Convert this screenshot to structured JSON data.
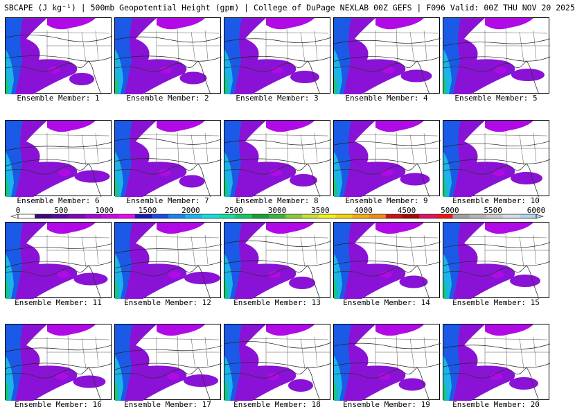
{
  "title": "SBCAPE (J kg⁻¹) | 500mb Geopotential Height (gpm) | College of DuPage NEXLAB 00Z GEFS | F096 Valid: 00Z THU NOV 20 2025",
  "panels": [
    {
      "label": "Ensemble Member: 1"
    },
    {
      "label": "Ensemble Member: 2"
    },
    {
      "label": "Ensemble Member: 3"
    },
    {
      "label": "Ensemble Member: 4"
    },
    {
      "label": "Ensemble Member: 5"
    },
    {
      "label": "Ensemble Member: 6"
    },
    {
      "label": "Ensemble Member: 7"
    },
    {
      "label": "Ensemble Member: 8"
    },
    {
      "label": "Ensemble Member: 9"
    },
    {
      "label": "Ensemble Member: 10"
    },
    {
      "label": "Ensemble Member: 11"
    },
    {
      "label": "Ensemble Member: 12"
    },
    {
      "label": "Ensemble Member: 13"
    },
    {
      "label": "Ensemble Member: 14"
    },
    {
      "label": "Ensemble Member: 15"
    },
    {
      "label": "Ensemble Member: 16"
    },
    {
      "label": "Ensemble Member: 17"
    },
    {
      "label": "Ensemble Member: 18"
    },
    {
      "label": "Ensemble Member: 19"
    },
    {
      "label": "Ensemble Member: 20"
    }
  ],
  "colorbar": {
    "ticks": [
      "0",
      "500",
      "1000",
      "1500",
      "2000",
      "2500",
      "3000",
      "3500",
      "4000",
      "4500",
      "5000",
      "5500",
      "6000"
    ],
    "colors": [
      "#ffffff",
      "#3c0a78",
      "#5a0a9a",
      "#7a0ab8",
      "#a00ad0",
      "#c80ae8",
      "#e60af0",
      "#1a1ab4",
      "#1a4ae0",
      "#1a82f0",
      "#1ab4f0",
      "#14dcdc",
      "#14dca0",
      "#14c864",
      "#14a032",
      "#3cb43c",
      "#8cc83c",
      "#c8dc3c",
      "#f0f01e",
      "#f0d214",
      "#f0aa14",
      "#f08c14",
      "#c81414",
      "#a00a0a",
      "#dc1464",
      "#f01414",
      "#a0a0a0",
      "#b4b4b4",
      "#c8c8c8",
      "#d2dce6",
      "#b4d2e6"
    ]
  }
}
